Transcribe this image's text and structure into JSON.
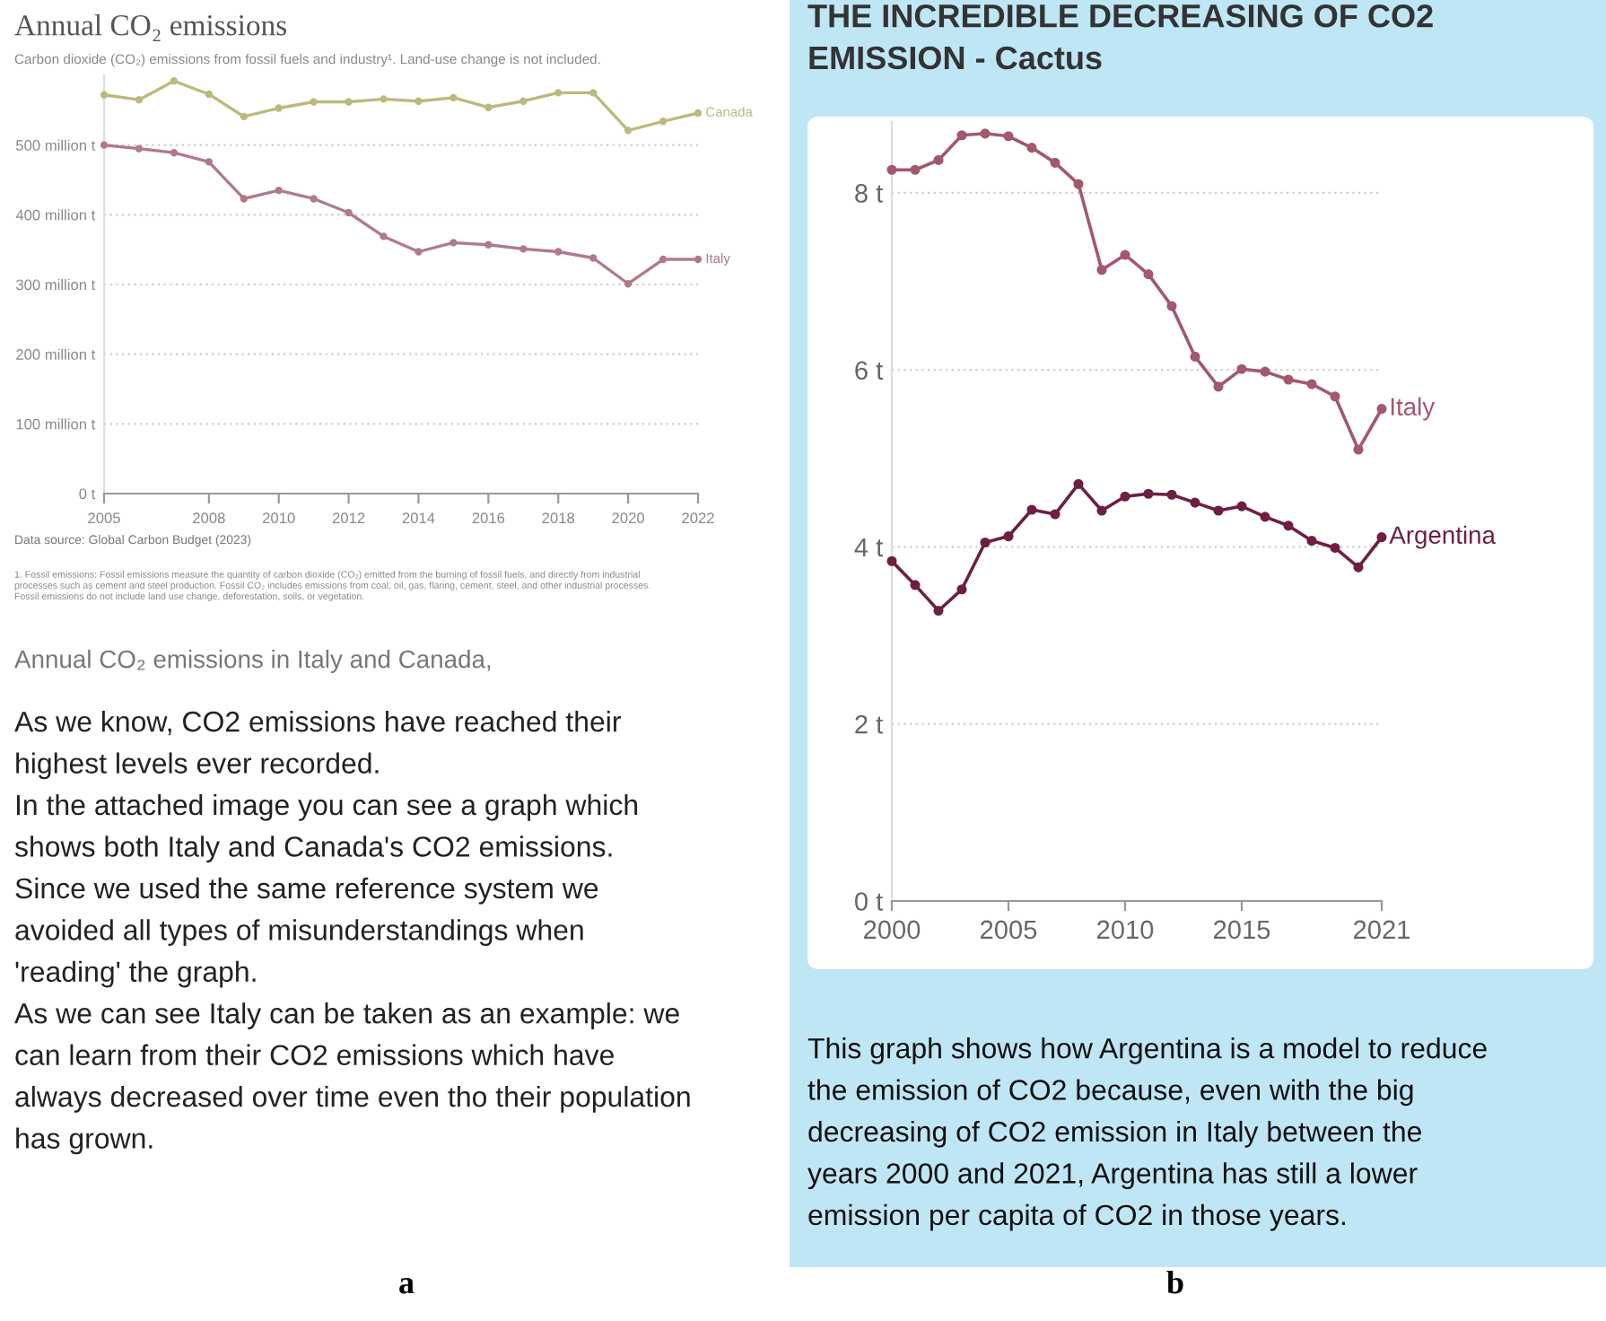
{
  "chart_data": [
    {
      "type": "line",
      "title": "Annual CO₂ emissions",
      "subtitle": "Carbon dioxide (CO₂) emissions from fossil fuels and industry¹. Land-use change is not included.",
      "x": [
        2005,
        2006,
        2007,
        2008,
        2009,
        2010,
        2011,
        2012,
        2013,
        2014,
        2015,
        2016,
        2017,
        2018,
        2019,
        2020,
        2021,
        2022
      ],
      "series": [
        {
          "name": "Canada",
          "color": "#bdb97c",
          "values": [
            572,
            565,
            592,
            573,
            541,
            553,
            562,
            562,
            566,
            563,
            568,
            554,
            563,
            575,
            575,
            521,
            534,
            546
          ]
        },
        {
          "name": "Italy",
          "color": "#b07b86",
          "values": [
            500,
            495,
            489,
            476,
            423,
            435,
            423,
            403,
            369,
            347,
            360,
            357,
            351,
            347,
            338,
            301,
            336,
            336
          ]
        }
      ],
      "xlim": [
        2005,
        2022
      ],
      "ylim": [
        0,
        600
      ],
      "xticks": [
        2005,
        2008,
        2010,
        2012,
        2014,
        2016,
        2018,
        2020,
        2022
      ],
      "yticks": [
        {
          "value": 0,
          "label": "0 t"
        },
        {
          "value": 100,
          "label": "100 million t"
        },
        {
          "value": 200,
          "label": "200 million t"
        },
        {
          "value": 300,
          "label": "300 million t"
        },
        {
          "value": 400,
          "label": "400 million t"
        },
        {
          "value": 500,
          "label": "500 million t"
        }
      ],
      "grid": "y",
      "legend": false,
      "marker": "circle",
      "line_style": "solid",
      "annotations": [
        "Data source: Global Carbon Budget (2023)",
        "1. Fossil emissions: Fossil emissions measure the quantity of carbon dioxide (CO₂) emitted from the burning of fossil fuels, and directly from industrial\nprocesses such as cement and steel production. Fossil CO₂ includes emissions from coal, oil, gas, flaring, cement, steel, and other industrial processes.\nFossil emissions do not include land use change, deforestation, soils, or vegetation.",
        "Annual CO₂ emissions in Italy and Canada,",
        "As we know, CO2 emissions have reached their\nhighest levels ever recorded.\nIn the attached image you can see a graph which\nshows both Italy and Canada's CO2 emissions.\nSince we used the same reference system we\navoided all types of misunderstandings when\n'reading' the graph.\nAs we can see Italy can be taken as an example: we\ncan learn from their CO2 emissions which have\nalways decreased over time even tho their population\nhas grown.",
        "a"
      ]
    },
    {
      "type": "line",
      "title": "THE INCREDIBLE DECREASING OF CO2\nEMISSION - Cactus",
      "x": [
        2000,
        2001,
        2002,
        2003,
        2004,
        2005,
        2006,
        2007,
        2008,
        2009,
        2010,
        2011,
        2012,
        2013,
        2014,
        2015,
        2016,
        2017,
        2018,
        2019,
        2020,
        2021
      ],
      "series": [
        {
          "name": "Italy",
          "color": "#a3586c",
          "values": [
            8.26,
            8.26,
            8.37,
            8.65,
            8.67,
            8.64,
            8.51,
            8.34,
            8.1,
            7.13,
            7.3,
            7.08,
            6.72,
            6.15,
            5.81,
            6.01,
            5.98,
            5.89,
            5.84,
            5.7,
            5.1,
            5.56
          ]
        },
        {
          "name": "Argentina",
          "color": "#6e1f43",
          "values": [
            3.84,
            3.57,
            3.28,
            3.52,
            4.05,
            4.12,
            4.42,
            4.37,
            4.71,
            4.41,
            4.57,
            4.6,
            4.59,
            4.5,
            4.41,
            4.46,
            4.34,
            4.24,
            4.07,
            3.99,
            3.77,
            4.11
          ]
        }
      ],
      "xlim": [
        2000,
        2021
      ],
      "ylim": [
        0,
        8.8
      ],
      "xticks": [
        2000,
        2005,
        2010,
        2015,
        2021
      ],
      "yticks": [
        {
          "value": 0,
          "label": "0 t"
        },
        {
          "value": 2,
          "label": "2 t"
        },
        {
          "value": 4,
          "label": "4 t"
        },
        {
          "value": 6,
          "label": "6 t"
        },
        {
          "value": 8,
          "label": "8 t"
        }
      ],
      "grid": "y",
      "legend": false,
      "marker": "circle",
      "line_style": "solid",
      "annotations": [
        "This graph shows how Argentina is a model to reduce\nthe emission of CO2 because, even with the big\ndecreasing of CO2 emission in Italy between the\nyears 2000 and 2021, Argentina has still a lower\nemission per capita of CO2 in those years.",
        "b"
      ]
    }
  ]
}
